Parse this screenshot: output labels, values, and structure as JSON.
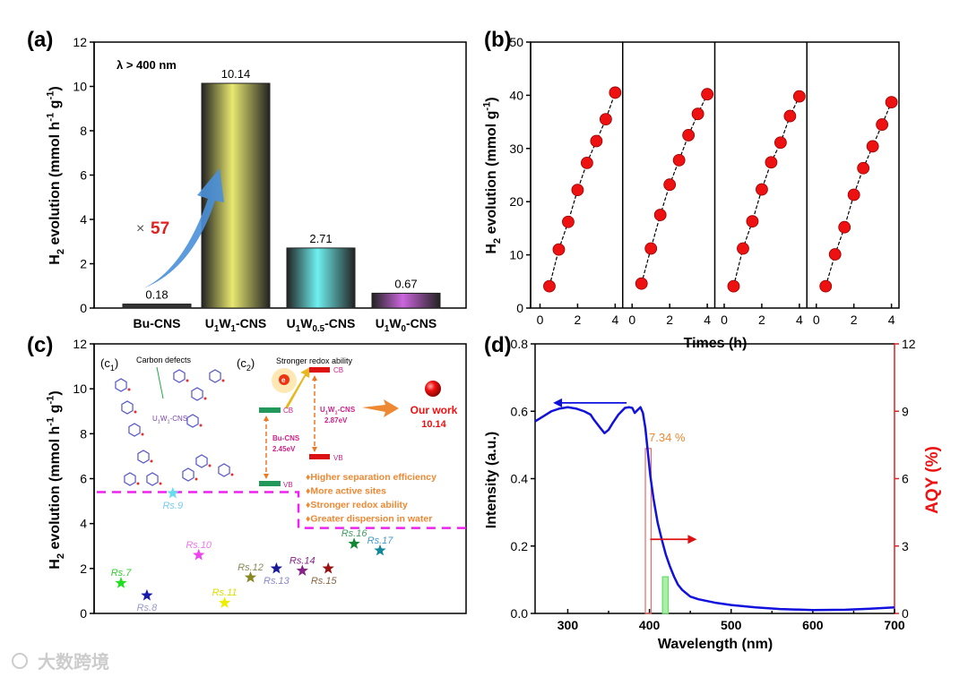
{
  "panel_labels": [
    "(a)",
    "(b)",
    "(c)",
    "(d)"
  ],
  "watermark": "大数跨境",
  "chart_data": [
    {
      "id": "a",
      "type": "bar",
      "categories": [
        "Bu-CNS",
        "U{1}W{1}-CNS",
        "U{1}W{0.5}-CNS",
        "U{1}W{0}-CNS"
      ],
      "values": [
        0.18,
        10.14,
        2.71,
        0.67
      ],
      "value_labels": [
        "0.18",
        "10.14",
        "2.71",
        "0.67"
      ],
      "colors": [
        "#333333",
        "#e8e870",
        "#6ff0f0",
        "#cc66dd"
      ],
      "ylabel": "H{2} evolution (mmol h^{-1} g^{-1})",
      "ylim": [
        0,
        12
      ],
      "yticks": [
        0,
        2,
        4,
        6,
        8,
        10,
        12
      ],
      "annotation": "λ > 400 nm",
      "enhancement_prefix": "×",
      "enhancement": "57"
    },
    {
      "id": "b",
      "type": "scatter",
      "xlabel": "Times (h)",
      "ylabel": "H{2} evolution (mmol  g^{-1})",
      "ylim": [
        0,
        50
      ],
      "yticks": [
        0,
        10,
        20,
        30,
        40,
        50
      ],
      "xlim": [
        -0.5,
        4.4
      ],
      "xticks": [
        0,
        2,
        4
      ],
      "x": [
        0.5,
        1,
        1.5,
        2,
        2.5,
        3,
        3.5,
        4
      ],
      "series": [
        {
          "name": "cycle 1",
          "values": [
            4.1,
            11.0,
            16.2,
            22.2,
            27.3,
            31.4,
            35.5,
            40.5
          ]
        },
        {
          "name": "cycle 2",
          "values": [
            4.6,
            11.2,
            17.5,
            23.2,
            27.8,
            32.5,
            36.5,
            40.2
          ]
        },
        {
          "name": "cycle 3",
          "values": [
            4.1,
            11.2,
            16.3,
            22.3,
            27.4,
            31.1,
            36.1,
            39.8
          ]
        },
        {
          "name": "cycle 4",
          "values": [
            4.1,
            10.1,
            15.2,
            21.3,
            26.3,
            30.4,
            34.5,
            38.7
          ]
        }
      ]
    },
    {
      "id": "c",
      "type": "scatter",
      "ylabel": "H{2} evolution (mmol h^{-1} g^{-1})",
      "ylim": [
        0,
        12
      ],
      "yticks": [
        0,
        2,
        4,
        6,
        8,
        10,
        12
      ],
      "points": [
        {
          "label": "Rs.7",
          "value": 1.35,
          "color": "#22dd22"
        },
        {
          "label": "Rs.8",
          "value": 0.8,
          "color": "#1a1aaa"
        },
        {
          "label": "Rs.9",
          "value": 5.35,
          "color": "#66ddee"
        },
        {
          "label": "Rs.10",
          "value": 2.6,
          "color": "#ee44ee"
        },
        {
          "label": "Rs.11",
          "value": 0.47,
          "color": "#eeee00"
        },
        {
          "label": "Rs.12",
          "value": 1.6,
          "color": "#888822"
        },
        {
          "label": "Rs.13",
          "value": 2.0,
          "color": "#1a1a99"
        },
        {
          "label": "Rs.14",
          "value": 1.9,
          "color": "#882288"
        },
        {
          "label": "Rs.15",
          "value": 2.0,
          "color": "#991111"
        },
        {
          "label": "Rs.16",
          "value": 3.1,
          "color": "#118833"
        },
        {
          "label": "Rs.17",
          "value": 2.8,
          "color": "#118899"
        }
      ],
      "label_colors": [
        "#33cc33",
        "#9999cc",
        "#77ccee",
        "#ee77ee",
        "#dddd00",
        "#888855",
        "#8888cc",
        "#882288",
        "#886644",
        "#449966",
        "#4499cc"
      ],
      "our_work": {
        "label": "Our work",
        "value": 10.14,
        "value_label": "10.14"
      },
      "threshold_levels": [
        5.4,
        3.8
      ],
      "inset": {
        "c1_label": "(c{1})",
        "c1_carbon_defects": "Carbon defects",
        "c1_material": "U{1}W{1}-CNS",
        "c2_label": "(c{2})",
        "c2_title": "Stronger redox ability",
        "electron": "e",
        "bu_cb": "CB",
        "bu_vb": "VB",
        "bu_name": "Bu-CNS",
        "bu_gap": "2.45eV",
        "u_cb": "CB",
        "u_vb": "VB",
        "u_name": "U{1}W{1}-CNS",
        "u_gap": "2.87eV",
        "bullets": [
          "Higher separation efficiency",
          "More active sites",
          "Stronger redox ability",
          "Greater dispersion in water"
        ]
      }
    },
    {
      "id": "d",
      "type": "line",
      "xlabel": "Wavelength (nm)",
      "ylabel": "Intensity (a.u.)",
      "y2label": "AQY (%)",
      "xlim": [
        260,
        700
      ],
      "xticks": [
        300,
        400,
        500,
        600,
        700
      ],
      "ylim": [
        0,
        0.8
      ],
      "yticks": [
        "0.0",
        "0.2",
        "0.4",
        "0.6",
        "0.8"
      ],
      "y2lim": [
        0,
        12
      ],
      "y2ticks": [
        0,
        3,
        6,
        9,
        12
      ],
      "absorption": {
        "x": [
          260,
          270,
          280,
          290,
          300,
          310,
          320,
          328,
          332,
          340,
          345,
          350,
          355,
          362,
          370,
          375,
          379,
          382,
          386,
          389,
          392,
          395,
          398,
          401,
          405,
          410,
          415,
          420,
          425,
          430,
          435,
          440,
          450,
          460,
          480,
          500,
          530,
          560,
          600,
          640,
          670,
          700
        ],
        "y": [
          0.57,
          0.585,
          0.6,
          0.608,
          0.612,
          0.608,
          0.6,
          0.59,
          0.575,
          0.55,
          0.535,
          0.545,
          0.565,
          0.59,
          0.61,
          0.612,
          0.61,
          0.595,
          0.605,
          0.612,
          0.595,
          0.55,
          0.48,
          0.41,
          0.34,
          0.27,
          0.22,
          0.175,
          0.14,
          0.11,
          0.085,
          0.07,
          0.05,
          0.042,
          0.032,
          0.025,
          0.018,
          0.013,
          0.01,
          0.011,
          0.014,
          0.018
        ]
      },
      "aqy_bars": [
        {
          "wavelength_range": [
            395,
            402
          ],
          "value": 7.34,
          "label": "7.34 %",
          "color": "#ee6666"
        },
        {
          "wavelength_range": [
            416,
            423
          ],
          "value": 1.63,
          "label": "",
          "color": "#66dd66"
        }
      ]
    }
  ]
}
